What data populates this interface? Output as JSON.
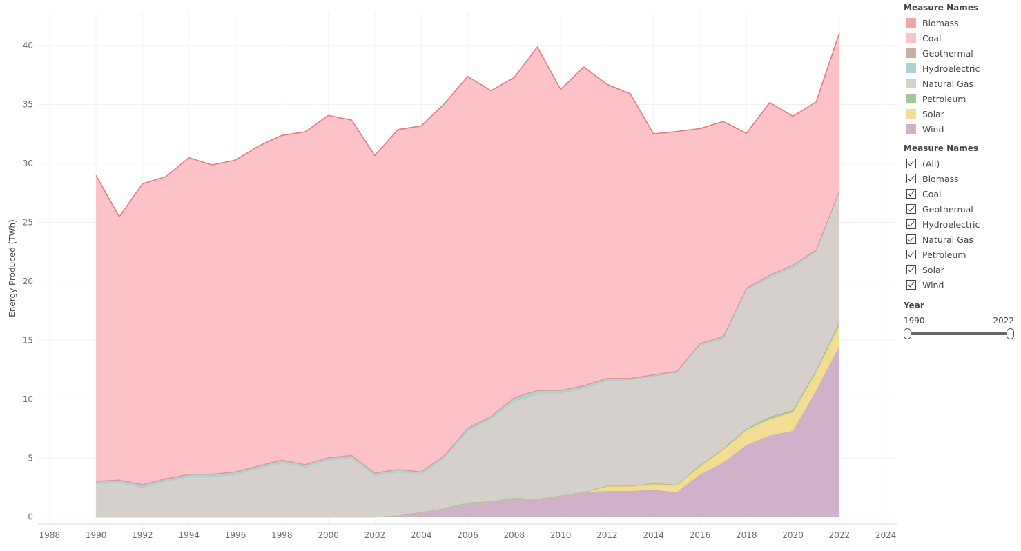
{
  "chart_data": {
    "type": "area",
    "stacked": true,
    "ylabel": "Energy Produced (TWh)",
    "xlim": [
      1987.5,
      2024.5
    ],
    "ylim": [
      -0.6,
      42.8
    ],
    "x_ticks": [
      1988,
      1990,
      1992,
      1994,
      1996,
      1998,
      2000,
      2002,
      2004,
      2006,
      2008,
      2010,
      2012,
      2014,
      2016,
      2018,
      2020,
      2022,
      2024
    ],
    "y_ticks": [
      0,
      5,
      10,
      15,
      20,
      25,
      30,
      35,
      40
    ],
    "grid": true,
    "x": [
      1990,
      1991,
      1992,
      1993,
      1994,
      1995,
      1996,
      1997,
      1998,
      1999,
      2000,
      2001,
      2002,
      2003,
      2004,
      2005,
      2006,
      2007,
      2008,
      2009,
      2010,
      2011,
      2012,
      2013,
      2014,
      2015,
      2016,
      2017,
      2018,
      2019,
      2020,
      2021,
      2022
    ],
    "series": [
      {
        "name": "Wind",
        "color": "#cfb1c9",
        "line": "#c9a7c3",
        "values": [
          0,
          0,
          0,
          0,
          0,
          0,
          0,
          0,
          0,
          0,
          0,
          0,
          0,
          0.1,
          0.4,
          0.7,
          1.2,
          1.3,
          1.6,
          1.5,
          1.8,
          2.1,
          2.2,
          2.2,
          2.3,
          2.1,
          3.6,
          4.6,
          6.1,
          6.9,
          7.3,
          10.7,
          14.5
        ]
      },
      {
        "name": "Solar",
        "color": "#f2dd92",
        "line": "#e8cf6c",
        "values": [
          0,
          0,
          0,
          0,
          0,
          0,
          0,
          0,
          0,
          0,
          0,
          0,
          0,
          0,
          0,
          0,
          0,
          0,
          0,
          0,
          0,
          0,
          0.4,
          0.4,
          0.5,
          0.6,
          0.7,
          1.1,
          1.3,
          1.4,
          1.6,
          1.6,
          1.8
        ]
      },
      {
        "name": "Petroleum",
        "color": "#a4c999",
        "line": "#8fbf85",
        "values": [
          0.02,
          0.02,
          0.02,
          0.02,
          0.02,
          0.02,
          0.02,
          0.02,
          0.02,
          0.02,
          0.02,
          0.02,
          0.02,
          0.02,
          0.02,
          0.02,
          0.02,
          0.02,
          0.02,
          0.02,
          0.02,
          0.02,
          0.05,
          0.05,
          0.05,
          0.05,
          0.1,
          0.1,
          0.1,
          0.2,
          0.15,
          0.15,
          0.2
        ]
      },
      {
        "name": "Natural Gas",
        "color": "#d5d0cb",
        "line": "#c6c1bb",
        "values": [
          2.8,
          2.9,
          2.5,
          3.0,
          3.4,
          3.4,
          3.6,
          4.1,
          4.6,
          4.2,
          4.8,
          5.0,
          3.5,
          3.7,
          3.2,
          4.3,
          6.1,
          7.0,
          8.2,
          8.9,
          8.7,
          8.8,
          8.9,
          9.0,
          9.1,
          9.5,
          10.2,
          9.3,
          11.8,
          11.8,
          12.1,
          10.1,
          11.1
        ]
      },
      {
        "name": "Hydroelectric",
        "color": "#aed1d1",
        "line": "#9fc5c5",
        "values": [
          0.2,
          0.2,
          0.2,
          0.2,
          0.2,
          0.2,
          0.2,
          0.2,
          0.2,
          0.2,
          0.2,
          0.2,
          0.2,
          0.2,
          0.2,
          0.2,
          0.2,
          0.2,
          0.3,
          0.3,
          0.2,
          0.2,
          0.2,
          0.1,
          0.1,
          0.1,
          0.1,
          0.2,
          0.1,
          0.2,
          0.2,
          0.1,
          0.1
        ]
      },
      {
        "name": "Geothermal",
        "color": "#c8b0a2",
        "line": "#b89e8f",
        "values": [
          0,
          0,
          0,
          0,
          0,
          0,
          0,
          0,
          0,
          0,
          0,
          0,
          0,
          0,
          0,
          0,
          0,
          0,
          0,
          0,
          0,
          0,
          0,
          0,
          0,
          0,
          0,
          0,
          0,
          0,
          0,
          0,
          0
        ]
      },
      {
        "name": "Biomass",
        "color": "#f0a7a7",
        "line": "#e08888",
        "values": [
          0.05,
          0.05,
          0.05,
          0.05,
          0.05,
          0.05,
          0.05,
          0.05,
          0.05,
          0.05,
          0.05,
          0.05,
          0.05,
          0.05,
          0.05,
          0.05,
          0.05,
          0.05,
          0.05,
          0.05,
          0.05,
          0.05,
          0.05,
          0.05,
          0.05,
          0.05,
          0.05,
          0.05,
          0.05,
          0.05,
          0.05,
          0.05,
          0.05
        ]
      },
      {
        "name": "Coal",
        "color": "#fcc2c8",
        "line": "#e07c80",
        "values": [
          25.9,
          22.3,
          25.5,
          25.6,
          26.8,
          26.2,
          26.4,
          27.1,
          27.5,
          28.2,
          29.0,
          28.4,
          26.9,
          28.8,
          29.3,
          29.8,
          29.8,
          27.6,
          27.1,
          29.1,
          25.5,
          27.0,
          24.9,
          24.1,
          20.4,
          20.3,
          18.2,
          18.2,
          13.1,
          14.6,
          12.6,
          12.5,
          13.3
        ]
      }
    ]
  },
  "legend": {
    "title": "Measure Names",
    "items": [
      {
        "label": "Biomass",
        "color": "#f0a7a7"
      },
      {
        "label": "Coal",
        "color": "#fcc2c8"
      },
      {
        "label": "Geothermal",
        "color": "#c8b0a2"
      },
      {
        "label": "Hydroelectric",
        "color": "#aed1d1"
      },
      {
        "label": "Natural Gas",
        "color": "#d5d0cb"
      },
      {
        "label": "Petroleum",
        "color": "#a4c999"
      },
      {
        "label": "Solar",
        "color": "#f2dd92"
      },
      {
        "label": "Wind",
        "color": "#cfb1c9"
      }
    ]
  },
  "filter": {
    "title": "Measure Names",
    "items": [
      {
        "label": "(All)",
        "checked": true
      },
      {
        "label": "Biomass",
        "checked": true
      },
      {
        "label": "Coal",
        "checked": true
      },
      {
        "label": "Geothermal",
        "checked": true
      },
      {
        "label": "Hydroelectric",
        "checked": true
      },
      {
        "label": "Natural Gas",
        "checked": true
      },
      {
        "label": "Petroleum",
        "checked": true
      },
      {
        "label": "Solar",
        "checked": true
      },
      {
        "label": "Wind",
        "checked": true
      }
    ]
  },
  "year_filter": {
    "title": "Year",
    "min_label": "1990",
    "max_label": "2022",
    "range": [
      1990,
      2022
    ]
  }
}
